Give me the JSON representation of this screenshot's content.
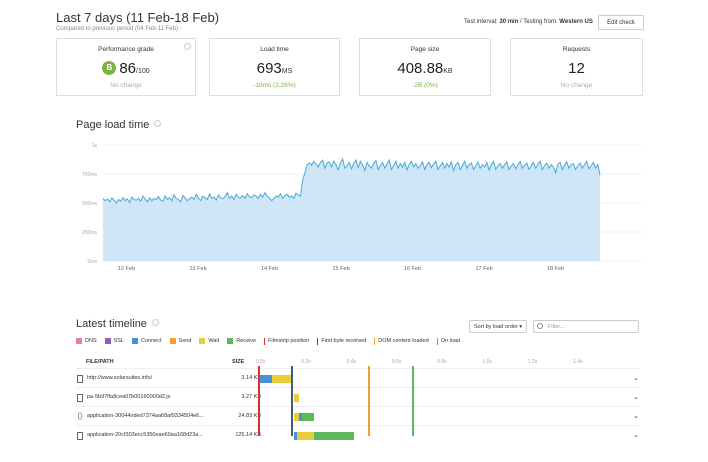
{
  "header": {
    "title": "Last 7 days (11 Feb-18 Feb)",
    "subtitle": "Compared to previous period (04 Feb-11 Feb)",
    "test_interval_label": "Test interval:",
    "test_interval_value": "30 min",
    "testing_from_label": "/ Testing from:",
    "testing_from_value": "Western US",
    "edit_label": "Edit check"
  },
  "cards": {
    "grade": {
      "label": "Performance grade",
      "badge": "B",
      "value": "86",
      "unit": "/100",
      "delta": "No change"
    },
    "load": {
      "label": "Load time",
      "value": "693",
      "unit": "MS",
      "delta": "-16ms (2.26%)"
    },
    "size": {
      "label": "Page size",
      "value": "408.88",
      "unit": "KB",
      "delta": "-2B (0%)"
    },
    "requests": {
      "label": "Requests",
      "value": "12",
      "delta": "No change"
    }
  },
  "colors": {
    "accent_green": "#7cb342",
    "line": "#4aa8d8",
    "area": "#cfe6f7",
    "dns": "#e57bb0",
    "ssl": "#9b59b6",
    "connect": "#4a90d9",
    "send": "#f0a030",
    "wait": "#e8cc3a",
    "receive": "#5cb85c",
    "filmstrip": "#d9312b",
    "first_byte": "#3d5a80",
    "dom_content": "#f0a030",
    "on_load": "#5cb85c"
  },
  "chart_data": {
    "type": "area",
    "title": "Page load time",
    "yticks": [
      "1s",
      "750ms",
      "500ms",
      "250ms",
      "0ms"
    ],
    "ylim": [
      0,
      1000
    ],
    "xticks": [
      "12 Feb",
      "13 Feb",
      "14 Feb",
      "15 Feb",
      "16 Feb",
      "17 Feb",
      "18 Feb"
    ],
    "x_range": [
      "11 Feb 12:00",
      "18 Feb 12:00"
    ],
    "series": [
      {
        "values": [
          540,
          520,
          535,
          510,
          545,
          525,
          500,
          530,
          515,
          545,
          520,
          535,
          505,
          550,
          530,
          525,
          540,
          515,
          560,
          535,
          510,
          545,
          520,
          540,
          530,
          555,
          525,
          515,
          560,
          530,
          545,
          520,
          570,
          540,
          530,
          510,
          565,
          545,
          520,
          535,
          550,
          530,
          575,
          540,
          520,
          560,
          545,
          530,
          580,
          540,
          550,
          525,
          570,
          545,
          535,
          555,
          590,
          540,
          560,
          530,
          575,
          550,
          545,
          565,
          540,
          580,
          555,
          545,
          570,
          560,
          540,
          575,
          550,
          590,
          560,
          545,
          520,
          535,
          560,
          550,
          580,
          540,
          565,
          575,
          550,
          560,
          540,
          585,
          570,
          560,
          700,
          760,
          830,
          845,
          825,
          860,
          835,
          810,
          850,
          870,
          800,
          845,
          855,
          810,
          860,
          830,
          785,
          845,
          880,
          800,
          820,
          850,
          795,
          840,
          870,
          805,
          860,
          830,
          780,
          850,
          820,
          800,
          840,
          865,
          790,
          820,
          850,
          800,
          835,
          870,
          790,
          820,
          860,
          800,
          840,
          810,
          850,
          785,
          830,
          860,
          810,
          840,
          800,
          820,
          855,
          790,
          830,
          850,
          805,
          835,
          860,
          790,
          820,
          850,
          800,
          840,
          810,
          855,
          780,
          830,
          850,
          790,
          820,
          860,
          800,
          830,
          845,
          790,
          820,
          855,
          800,
          830,
          810,
          850,
          785,
          830,
          860,
          790,
          820,
          840,
          800,
          830,
          855,
          790,
          820,
          840,
          795,
          830,
          860,
          800,
          825,
          845,
          790,
          820,
          850,
          800,
          835,
          860,
          790,
          820,
          845,
          800,
          830,
          810,
          760,
          835,
          850,
          790,
          825,
          855,
          800,
          830,
          840,
          790,
          820,
          845,
          800,
          830,
          860,
          795,
          820,
          850,
          800,
          835,
          740
        ]
      }
    ]
  },
  "timeline": {
    "title": "Latest timeline",
    "sort_label": "Sort by load order",
    "filter_placeholder": "Filter...",
    "legend": [
      "DNS",
      "SSL",
      "Connect",
      "Send",
      "Wait",
      "Receive",
      "Filmstrip position",
      "First byte received",
      "DOM content loaded",
      "On load"
    ],
    "columns": {
      "path": "FILE/PATH",
      "size": "SIZE"
    },
    "ticks": [
      "0.0s",
      "0.2s",
      "0.4s",
      "0.6s",
      "0.8s",
      "1.0s",
      "1.2s",
      "1.4s"
    ],
    "rows": [
      {
        "path": "http://www.solarsuites.info/",
        "size": "3.14 KB"
      },
      {
        "path": "pa-5b97ffa8cea07b00160000d2.js",
        "size": "3.27 KB"
      },
      {
        "path": "application-30044oded7374aa68af9334504e6...",
        "size": "24.83 KB"
      },
      {
        "path": "application-20cf303ecc5350eae60aa168d23a...",
        "size": "125.14 KB"
      }
    ]
  }
}
